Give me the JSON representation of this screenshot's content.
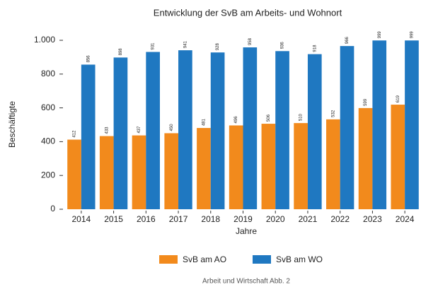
{
  "chart_data": {
    "type": "bar",
    "title": "Entwicklung der SvB am Arbeits- und Wohnort",
    "y_label": "Beschäftigte",
    "x_label": "Jahre",
    "caption": "Arbeit und Wirtschaft Abb. 2",
    "categories": [
      "2014",
      "2015",
      "2016",
      "2017",
      "2018",
      "2019",
      "2020",
      "2021",
      "2022",
      "2023",
      "2024"
    ],
    "series": [
      {
        "name": "SvB am AO",
        "color": "#f28a1c",
        "values": [
          412,
          433,
          437,
          450,
          481,
          496,
          506,
          510,
          532,
          599,
          619
        ]
      },
      {
        "name": "SvB am WO",
        "color": "#1f78c1",
        "values": [
          856,
          898,
          931,
          941,
          928,
          958,
          936,
          918,
          966,
          999,
          999
        ]
      }
    ],
    "ylim": [
      0,
      1000
    ],
    "yticks": [
      0,
      200,
      400,
      600,
      800,
      {
        "value": 1000,
        "label": "1.000"
      }
    ],
    "legend": "bottom"
  }
}
